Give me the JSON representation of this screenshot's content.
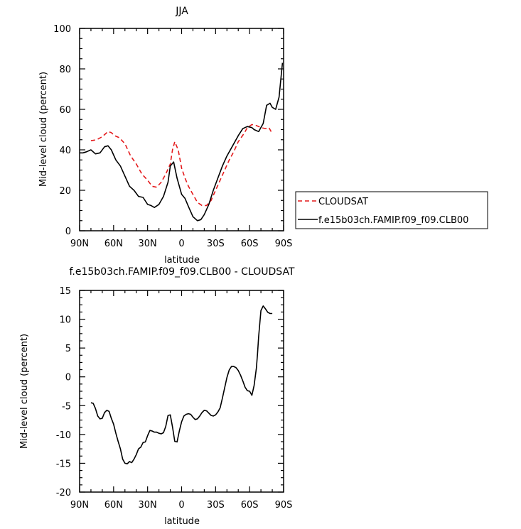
{
  "chart_data": [
    {
      "type": "line",
      "title": "JJA",
      "xlabel": "latitude",
      "ylabel": "Mid-level cloud (percent)",
      "xlim": [
        90,
        -90
      ],
      "ylim": [
        0,
        100
      ],
      "xticks": [
        90,
        60,
        30,
        0,
        -30,
        -60,
        -90
      ],
      "xtick_labels": [
        "90N",
        "60N",
        "30N",
        "0",
        "30S",
        "60S",
        "90S"
      ],
      "yticks": [
        0,
        20,
        40,
        60,
        80,
        100
      ],
      "ytick_labels": [
        "0",
        "20",
        "40",
        "60",
        "80",
        "100"
      ],
      "legend": {
        "placement": "right"
      },
      "series": [
        {
          "name": "CLOUDSAT",
          "color": "#e41a1c",
          "dash": "dashed",
          "x": [
            80,
            75,
            70,
            65,
            62,
            59,
            55,
            50,
            45,
            40,
            35,
            30,
            26,
            22,
            18,
            14,
            10,
            8,
            6,
            3,
            0,
            -3,
            -6,
            -10,
            -14,
            -18,
            -22,
            -26,
            -30,
            -34,
            -38,
            -42,
            -46,
            -50,
            -55,
            -58,
            -62,
            -66,
            -70,
            -74,
            -77,
            -80
          ],
          "y": [
            44.5,
            45,
            46.5,
            49,
            48.5,
            47,
            46,
            43,
            37,
            33,
            28,
            25,
            22,
            21.5,
            24,
            28,
            33,
            40,
            44,
            40,
            31,
            26,
            22,
            18,
            14,
            12.5,
            12.5,
            15,
            20,
            25,
            30,
            35,
            39,
            44,
            48,
            51,
            52.5,
            52,
            51,
            50.5,
            51,
            48
          ]
        },
        {
          "name": "f.e15b03ch.FAMIP.f09_f09.CLB00",
          "color": "#000000",
          "dash": "solid",
          "x": [
            90,
            87,
            84,
            80,
            76,
            72,
            68,
            65,
            62,
            58,
            54,
            50,
            46,
            42,
            38,
            34,
            30,
            27,
            24,
            20,
            16,
            12,
            10,
            7,
            4,
            0,
            -3,
            -6,
            -10,
            -14,
            -17,
            -20,
            -24,
            -28,
            -32,
            -36,
            -40,
            -45,
            -50,
            -54,
            -58,
            -62,
            -64,
            -68,
            -72,
            -75,
            -78,
            -80,
            -83,
            -86,
            -89
          ],
          "y": [
            38.5,
            38.5,
            39,
            40,
            38,
            38.5,
            41.5,
            42,
            40,
            35,
            32,
            27,
            22,
            20,
            17,
            16.5,
            13,
            12.5,
            11.5,
            13,
            17,
            24,
            32,
            34,
            26,
            18,
            16,
            12,
            7,
            5,
            5.5,
            8,
            13,
            20,
            26,
            32,
            37,
            42,
            47,
            50.5,
            51.5,
            51,
            50,
            49,
            53,
            62,
            63,
            61,
            60,
            66,
            83
          ]
        }
      ]
    },
    {
      "type": "line",
      "title": "f.e15b03ch.FAMIP.f09_f09.CLB00 - CLOUDSAT",
      "xlabel": "latitude",
      "ylabel": "Mid-level cloud (percent)",
      "xlim": [
        90,
        -90
      ],
      "ylim": [
        -20,
        15
      ],
      "xticks": [
        90,
        60,
        30,
        0,
        -30,
        -60,
        -90
      ],
      "xtick_labels": [
        "90N",
        "60N",
        "30N",
        "0",
        "30S",
        "60S",
        "90S"
      ],
      "yticks": [
        -20,
        -15,
        -10,
        -5,
        0,
        5,
        10,
        15
      ],
      "ytick_labels": [
        "-20",
        "-15",
        "-10",
        "-5",
        "0",
        "5",
        "10",
        "15"
      ],
      "series": [
        {
          "color": "#000000",
          "dash": "solid",
          "x": [
            80,
            78,
            76,
            74,
            72,
            70,
            68,
            66,
            64,
            62,
            60,
            58,
            56,
            54,
            52,
            50,
            48,
            46,
            44,
            42,
            40,
            38,
            36,
            34,
            32,
            30,
            28,
            26,
            24,
            22,
            20,
            18,
            16,
            14,
            12,
            10,
            8,
            6,
            4,
            2,
            0,
            -2,
            -4,
            -6,
            -8,
            -10,
            -12,
            -14,
            -16,
            -18,
            -20,
            -22,
            -24,
            -26,
            -28,
            -30,
            -32,
            -34,
            -36,
            -38,
            -40,
            -42,
            -44,
            -46,
            -48,
            -50,
            -52,
            -54,
            -56,
            -58,
            -60,
            -62,
            -64,
            -66,
            -67,
            -68,
            -70,
            -72,
            -74,
            -76,
            -78,
            -80
          ],
          "y": [
            -4.5,
            -4.6,
            -5.5,
            -6.8,
            -7.3,
            -7.2,
            -6.2,
            -5.8,
            -6.0,
            -7.2,
            -8.2,
            -9.8,
            -11.2,
            -12.5,
            -14.3,
            -15.0,
            -15.1,
            -14.7,
            -14.9,
            -14.3,
            -13.5,
            -12.5,
            -12.2,
            -11.4,
            -11.3,
            -10.2,
            -9.3,
            -9.4,
            -9.6,
            -9.6,
            -9.8,
            -9.9,
            -9.7,
            -8.6,
            -6.7,
            -6.6,
            -8.7,
            -11.2,
            -11.3,
            -9.4,
            -7.8,
            -6.8,
            -6.5,
            -6.4,
            -6.5,
            -7.0,
            -7.4,
            -7.3,
            -6.8,
            -6.2,
            -5.8,
            -5.9,
            -6.3,
            -6.7,
            -6.8,
            -6.6,
            -6.1,
            -5.4,
            -3.7,
            -1.9,
            -0.1,
            1.2,
            1.8,
            1.8,
            1.6,
            1.1,
            0.3,
            -0.7,
            -1.8,
            -2.4,
            -2.5,
            -3.2,
            -1.5,
            1.5,
            4.0,
            7.0,
            11.5,
            12.3,
            11.8,
            11.2,
            11.0,
            11.0
          ]
        }
      ]
    }
  ]
}
